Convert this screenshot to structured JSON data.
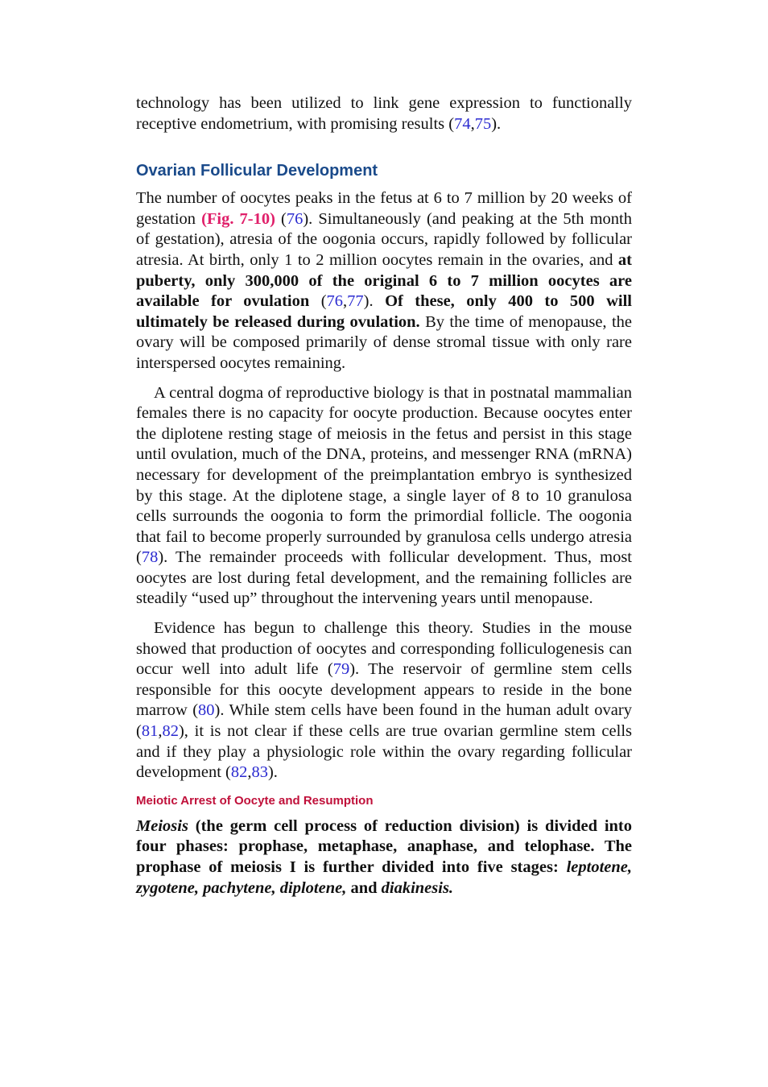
{
  "p1": [
    "technology has been utilized to link gene expression to functionally receptive endometrium, with promising results (",
    "74",
    ",",
    "75",
    ")."
  ],
  "heading1": "Ovarian Follicular Development",
  "p2": [
    "The number of oocytes peaks in the fetus at 6 to 7 million by 20 weeks of gestation ",
    "(Fig. 7-10)",
    " (",
    "76",
    "). Simultaneously (and peaking at the 5th month of gestation), atresia of the oogonia occurs, rapidly followed by follicular atresia. At birth, only 1 to 2 million oocytes remain in the ovaries, and ",
    "at puberty, only 300,000 of the original 6 to 7 million oocytes are available for ovulation",
    " (",
    "76",
    ",",
    "77",
    "). ",
    "Of these, only 400 to 500 will ultimately be released during ovulation.",
    " By the time of menopause, the ovary will be composed primarily of dense stromal tissue with only rare interspersed oocytes remaining."
  ],
  "p3": [
    "A central dogma of reproductive biology is that in postnatal mammalian females there is no capacity for oocyte production. Because oocytes enter the diplotene resting stage of meiosis in the fetus and persist in this stage until ovulation, much of the DNA, proteins, and messenger RNA (mRNA) necessary for development of the preimplantation embryo is synthesized by this stage. At the diplotene stage, a single layer of 8 to 10 granulosa cells surrounds the oogonia to form the primordial follicle. The oogonia that fail to become properly surrounded by granulosa cells undergo atresia (",
    "78",
    "). The remainder proceeds with follicular development. Thus, most oocytes are lost during fetal development, and the remaining follicles are steadily “used up” throughout the intervening years until menopause."
  ],
  "p4": [
    "Evidence has begun to challenge this theory. Studies in the mouse showed that production of oocytes and corresponding folliculogenesis can occur well into adult life (",
    "79",
    "). The reservoir of germline stem cells responsible for this oocyte development appears to reside in the bone marrow (",
    "80",
    "). While stem cells have been found in the human adult ovary (",
    "81",
    ",",
    "82",
    "), it is not clear if these cells are true ovarian germline stem cells and if they play a physiologic role within the ovary regarding follicular development (",
    "82",
    ",",
    "83",
    ")."
  ],
  "heading2": "Meiotic Arrest of Oocyte and Resumption",
  "p5": [
    "Meiosis",
    " (the germ cell process of reduction division) is divided into four phases: prophase, metaphase, anaphase, and telophase. The prophase of meiosis I is further divided into five stages: ",
    "leptotene, zygotene, pachytene, diplotene,",
    " and ",
    "diakinesis."
  ]
}
